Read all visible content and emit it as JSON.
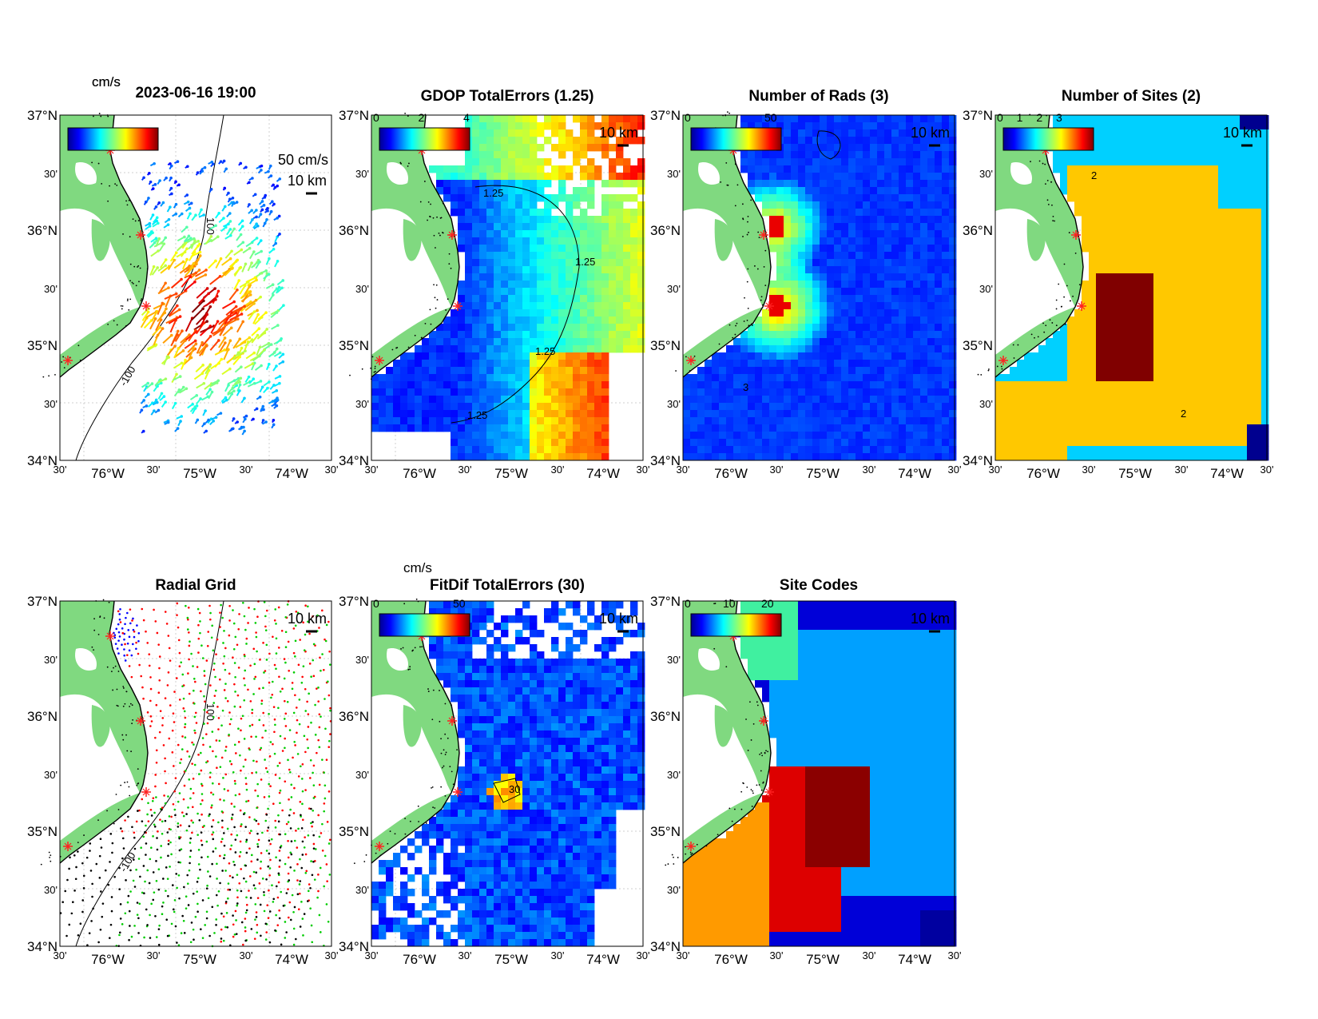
{
  "figure": {
    "timestamp": "2023-06-16 19:00",
    "panels": [
      {
        "id": "p1",
        "title": "",
        "unit": "cm/s",
        "colorbar_ticks": [],
        "vector_scale_label": "50 cm/s",
        "scale_label": "10 km",
        "kind": "vectors",
        "isobath_labels": [
          "100",
          "-100"
        ]
      },
      {
        "id": "p2",
        "title": "GDOP TotalErrors (1.25)",
        "unit": "",
        "colorbar_ticks": [
          "0",
          "2",
          "4"
        ],
        "scale_label": "10 km",
        "kind": "gdop",
        "contour_label": "1.25"
      },
      {
        "id": "p3",
        "title": "Number of Rads (3)",
        "unit": "",
        "colorbar_ticks": [
          "0",
          "50"
        ],
        "scale_label": "10 km",
        "kind": "rads",
        "contour_label": "3"
      },
      {
        "id": "p4",
        "title": "Number of Sites (2)",
        "unit": "",
        "colorbar_ticks": [
          "0",
          "1",
          "2",
          "3"
        ],
        "scale_label": "10 km",
        "kind": "sites",
        "contour_label": "2"
      },
      {
        "id": "p5",
        "title": "Radial Grid",
        "unit": "",
        "colorbar_ticks": [],
        "scale_label": "10 km",
        "kind": "radial",
        "isobath_labels": [
          "100",
          "-100"
        ]
      },
      {
        "id": "p6",
        "title": "FitDif TotalErrors (30)",
        "unit": "cm/s",
        "colorbar_ticks": [
          "0",
          "50"
        ],
        "scale_label": "10 km",
        "kind": "fitdif",
        "contour_label": "30"
      },
      {
        "id": "p7",
        "title": "Site Codes",
        "unit": "",
        "colorbar_ticks": [
          "0",
          "10",
          "20"
        ],
        "scale_label": "10 km",
        "kind": "codes"
      }
    ],
    "lat_labels": [
      "37°N",
      "30'",
      "36°N",
      "30'",
      "35°N",
      "30'",
      "34°N"
    ],
    "lon_labels": [
      "30'",
      "76°W",
      "30'",
      "75°W",
      "30'",
      "74°W",
      "30'"
    ]
  },
  "colors": {
    "land": "#80d980",
    "coast": "#000000",
    "site_marker": "#ff2020",
    "jet": [
      "#00008f",
      "#0000ff",
      "#0080ff",
      "#00ffff",
      "#80ff80",
      "#ffff00",
      "#ff8000",
      "#ff0000",
      "#800000"
    ],
    "sites_levels": [
      "#00008f",
      "#00d0ff",
      "#ffc800",
      "#800000"
    ],
    "codes_levels": [
      "#0000a0",
      "#0000d8",
      "#00a0ff",
      "#40f0a0",
      "#ff9a00",
      "#dd0000",
      "#8b0000"
    ],
    "radial_sites": [
      "#0000ff",
      "#ff0000",
      "#00cc00",
      "#000000"
    ]
  }
}
